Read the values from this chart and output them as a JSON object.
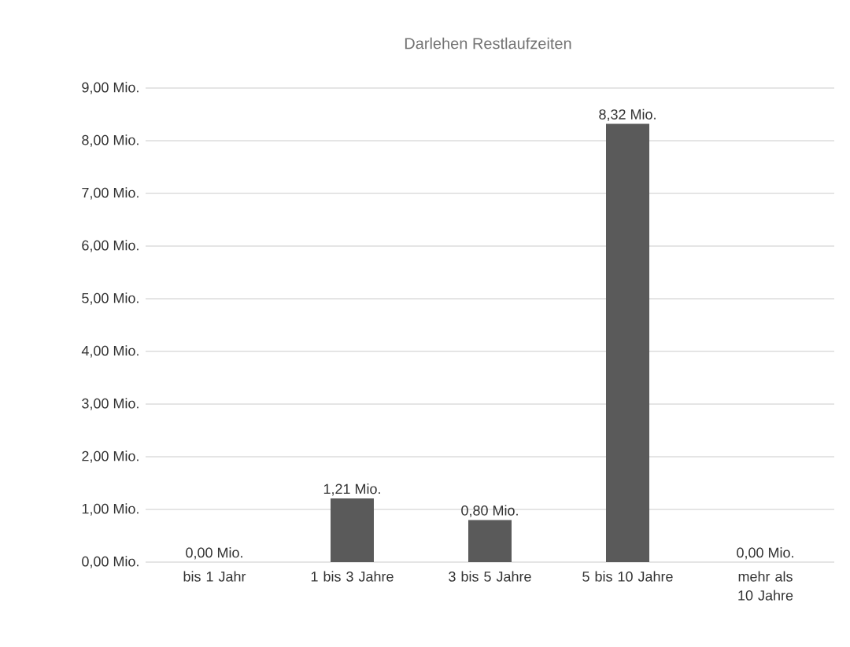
{
  "chart_data": {
    "type": "bar",
    "title": "Darlehen Restlaufzeiten",
    "categories": [
      "bis 1 Jahr",
      "1 bis 3 Jahre",
      "3 bis 5 Jahre",
      "5 bis 10 Jahre",
      "mehr als 10 Jahre"
    ],
    "values": [
      0,
      1.21,
      0.8,
      8.32,
      0
    ],
    "value_labels": [
      "0,00 Mio.",
      "1,21 Mio.",
      "0,80 Mio.",
      "8,32 Mio.",
      "0,00 Mio."
    ],
    "color": "#5a5a5a",
    "ylim": [
      0,
      9
    ],
    "yticks": [
      {
        "value": 0,
        "label": "0,00 Mio."
      },
      {
        "value": 1,
        "label": "1,00 Mio."
      },
      {
        "value": 2,
        "label": "2,00 Mio."
      },
      {
        "value": 3,
        "label": "3,00 Mio."
      },
      {
        "value": 4,
        "label": "4,00 Mio."
      },
      {
        "value": 5,
        "label": "5,00 Mio."
      },
      {
        "value": 6,
        "label": "6,00 Mio."
      },
      {
        "value": 7,
        "label": "7,00 Mio."
      },
      {
        "value": 8,
        "label": "8,00 Mio."
      },
      {
        "value": 9,
        "label": "9,00 Mio."
      }
    ],
    "grid": "y"
  }
}
